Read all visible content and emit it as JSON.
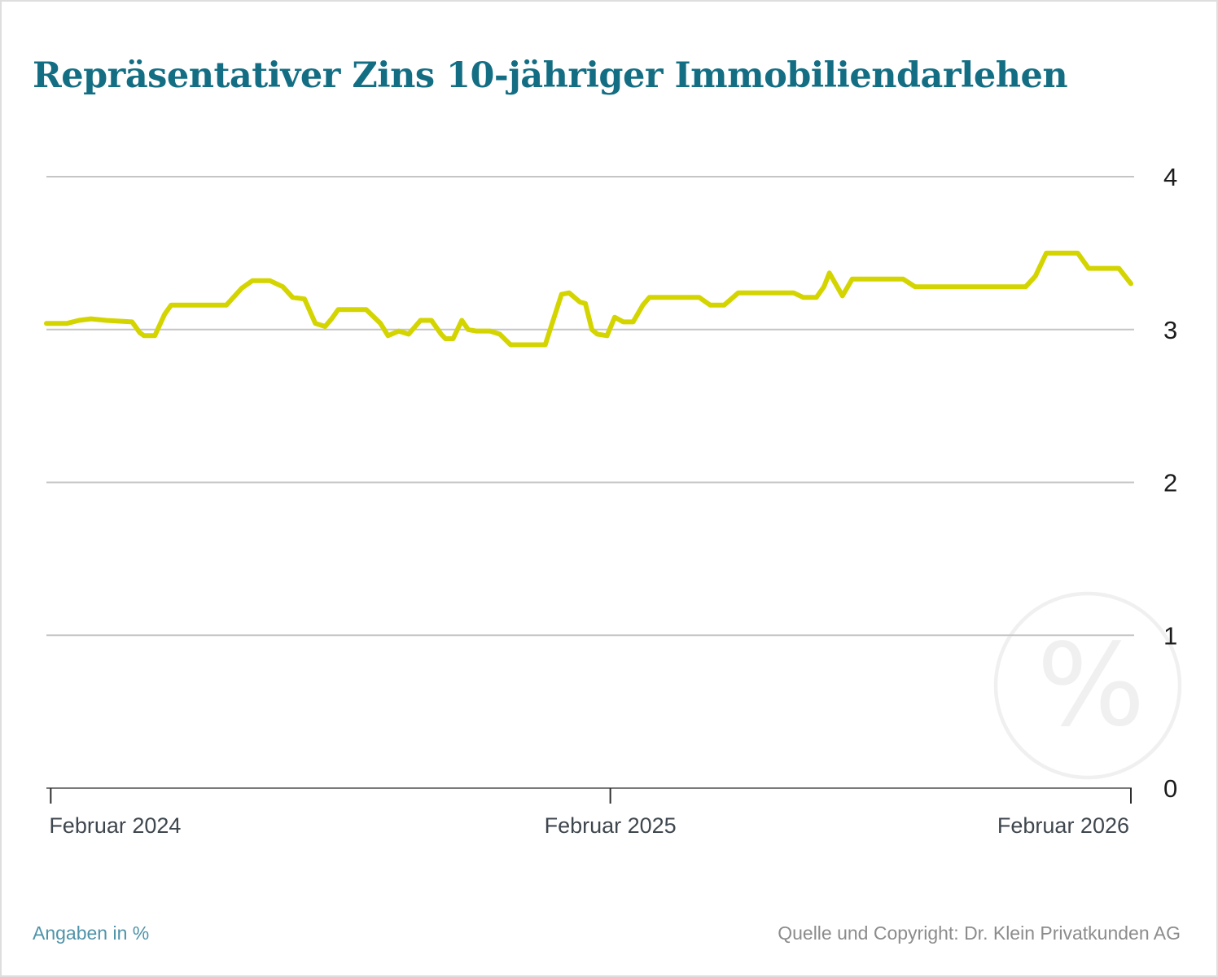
{
  "title": "Repräsentativer Zins 10-jähriger Immobiliendarlehen",
  "footer": {
    "left": "Angaben in %",
    "right": "Quelle und Copyright: Dr. Klein Privatkunden AG"
  },
  "watermark": {
    "symbol": "%"
  },
  "colors": {
    "title": "#136e84",
    "line": "#d4d500",
    "grid": "#c5c5c5",
    "axis": "#7a7a7a",
    "tick": "#2e2e2e",
    "x_label": "#3f474e",
    "y_label": "#1c1c1c",
    "footer_left": "#4f93a9",
    "footer_right": "#8c8c8c",
    "watermark": "#f0f0f0",
    "border": "#dedede"
  },
  "chart_data": {
    "type": "line",
    "title": "Repräsentativer Zins 10-jähriger Immobiliendarlehen",
    "unit": "%",
    "ylim": [
      0,
      4
    ],
    "yticks": [
      0,
      1,
      2,
      3,
      4
    ],
    "y_axis_side": "right",
    "grid": "horizontal",
    "x_ticks": [
      {
        "label": "Februar 2024",
        "pos": 0.004,
        "align": "start"
      },
      {
        "label": "Februar 2025",
        "pos": 0.52,
        "align": "middle"
      },
      {
        "label": "Februar 2026",
        "pos": 1.0,
        "align": "end"
      }
    ],
    "series": [
      {
        "name": "Repräsentativer Zins 10-jähriger Immobiliendarlehen",
        "color": "#d4d500",
        "points": [
          [
            0.0,
            3.04
          ],
          [
            0.019,
            3.04
          ],
          [
            0.03,
            3.06
          ],
          [
            0.041,
            3.07
          ],
          [
            0.055,
            3.06
          ],
          [
            0.079,
            3.05
          ],
          [
            0.086,
            2.98
          ],
          [
            0.09,
            2.96
          ],
          [
            0.1,
            2.96
          ],
          [
            0.109,
            3.1
          ],
          [
            0.115,
            3.16
          ],
          [
            0.166,
            3.16
          ],
          [
            0.18,
            3.27
          ],
          [
            0.19,
            3.32
          ],
          [
            0.206,
            3.32
          ],
          [
            0.218,
            3.28
          ],
          [
            0.227,
            3.21
          ],
          [
            0.238,
            3.2
          ],
          [
            0.248,
            3.04
          ],
          [
            0.257,
            3.02
          ],
          [
            0.263,
            3.07
          ],
          [
            0.269,
            3.13
          ],
          [
            0.295,
            3.13
          ],
          [
            0.308,
            3.04
          ],
          [
            0.315,
            2.96
          ],
          [
            0.325,
            2.99
          ],
          [
            0.334,
            2.97
          ],
          [
            0.345,
            3.06
          ],
          [
            0.355,
            3.06
          ],
          [
            0.364,
            2.97
          ],
          [
            0.368,
            2.94
          ],
          [
            0.375,
            2.94
          ],
          [
            0.383,
            3.06
          ],
          [
            0.389,
            3.0
          ],
          [
            0.396,
            2.99
          ],
          [
            0.409,
            2.99
          ],
          [
            0.418,
            2.97
          ],
          [
            0.428,
            2.9
          ],
          [
            0.46,
            2.9
          ],
          [
            0.475,
            3.23
          ],
          [
            0.482,
            3.24
          ],
          [
            0.492,
            3.18
          ],
          [
            0.497,
            3.17
          ],
          [
            0.503,
            3.0
          ],
          [
            0.508,
            2.97
          ],
          [
            0.517,
            2.96
          ],
          [
            0.524,
            3.08
          ],
          [
            0.532,
            3.05
          ],
          [
            0.541,
            3.05
          ],
          [
            0.55,
            3.16
          ],
          [
            0.556,
            3.21
          ],
          [
            0.602,
            3.21
          ],
          [
            0.612,
            3.16
          ],
          [
            0.625,
            3.16
          ],
          [
            0.638,
            3.24
          ],
          [
            0.689,
            3.24
          ],
          [
            0.698,
            3.21
          ],
          [
            0.71,
            3.21
          ],
          [
            0.717,
            3.28
          ],
          [
            0.722,
            3.37
          ],
          [
            0.734,
            3.22
          ],
          [
            0.743,
            3.33
          ],
          [
            0.79,
            3.33
          ],
          [
            0.801,
            3.28
          ],
          [
            0.903,
            3.28
          ],
          [
            0.912,
            3.35
          ],
          [
            0.922,
            3.5
          ],
          [
            0.951,
            3.5
          ],
          [
            0.961,
            3.4
          ],
          [
            0.989,
            3.4
          ],
          [
            1.0,
            3.3
          ]
        ]
      }
    ]
  }
}
